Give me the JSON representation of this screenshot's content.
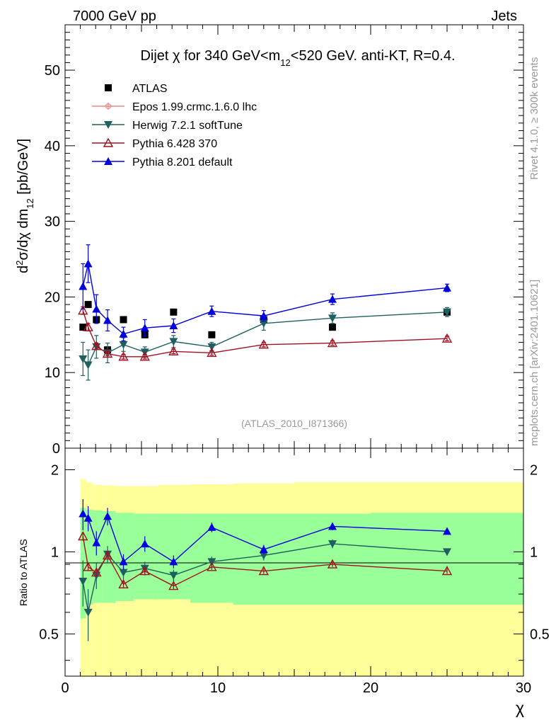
{
  "header": {
    "energy_label": "7000 GeV pp",
    "category_label": "Jets"
  },
  "side": {
    "rivet_label": "Rivet 4.1.0, ≥ 300k events",
    "mcplots_label": "mcplots.cern.ch [arXiv:2401.10621]"
  },
  "colors": {
    "atlas": "#000000",
    "epos": "#ee8888",
    "herwig": "#1e5f5f",
    "pythia6": "#a01020",
    "pythia8": "#0000dd",
    "band_inner": "#99ff99",
    "band_outer": "#ffff99"
  },
  "chart_data": [
    {
      "type": "scatter",
      "title": "Dijet χ for 340 GeV<m12<520 GeV.  anti-KT, R=0.4.",
      "title_parts": {
        "pre": "Dijet ",
        "chi": "χ",
        "mid": " for 340 GeV<m",
        "sub": "12",
        "post": "<520 GeV.  anti-KT, R=0.4."
      },
      "ylabel": "d²σ/dχ dm12 [pb/GeV]",
      "ylabel_parts": {
        "d": "d",
        "two": "2",
        "sig": "σ/dχ dm",
        "sub": "12",
        "unit": " [pb/GeV]"
      },
      "watermark": "(ATLAS_2010_I871366)",
      "xlim": [
        0,
        30
      ],
      "ylim": [
        0,
        56
      ],
      "y_ticks": [
        0,
        10,
        20,
        30,
        40,
        50
      ],
      "x": [
        1.17,
        1.51,
        2.05,
        2.78,
        3.82,
        5.22,
        7.1,
        9.6,
        13.0,
        17.5,
        25.0
      ],
      "series": [
        {
          "name": "ATLAS",
          "marker": "square",
          "values": [
            16.0,
            19.0,
            17.0,
            13.0,
            17.0,
            15.0,
            18.0,
            15.0,
            17.0,
            16.0,
            18.0
          ]
        },
        {
          "name": "Epos 1.99.crmc.1.6.0 lhc",
          "marker": "cross",
          "values": []
        },
        {
          "name": "Herwig 7.2.1 softTune",
          "marker": "triangle-down",
          "values": [
            11.8,
            11.0,
            13.4,
            12.6,
            13.7,
            12.7,
            14.1,
            13.4,
            16.5,
            17.2,
            18.0
          ],
          "errors": [
            2.2,
            2.0,
            1.5,
            1.3,
            0.9,
            0.7,
            0.8,
            0.6,
            0.9,
            0.7,
            0.6
          ]
        },
        {
          "name": "Pythia 6.428 370",
          "marker": "triangle-open",
          "values": [
            18.2,
            16.0,
            13.5,
            12.5,
            12.1,
            12.1,
            12.8,
            12.6,
            13.7,
            13.9,
            14.5
          ],
          "errors": [
            0.5,
            0.5,
            0.4,
            0.3,
            0.3,
            0.3,
            0.3,
            0.3,
            0.3,
            0.3,
            0.3
          ]
        },
        {
          "name": "Pythia 8.201 default",
          "marker": "triangle-up",
          "values": [
            21.4,
            24.4,
            18.4,
            16.9,
            15.1,
            15.9,
            16.2,
            18.1,
            17.5,
            19.7,
            21.2
          ],
          "errors": [
            3.0,
            2.5,
            1.9,
            1.4,
            0.9,
            1.1,
            0.9,
            0.7,
            0.7,
            0.7,
            0.5
          ]
        }
      ]
    },
    {
      "type": "scatter",
      "xlabel": "χ",
      "ylabel": "Ratio to ATLAS",
      "xlim": [
        0,
        30
      ],
      "ylim": [
        0.35,
        2.4
      ],
      "yscale": "log",
      "x_ticks": [
        0,
        10,
        20,
        30
      ],
      "y_ticks": [
        0.5,
        1,
        2
      ],
      "x": [
        1.17,
        1.51,
        2.05,
        2.78,
        3.82,
        5.22,
        7.1,
        9.6,
        13.0,
        17.5,
        25.0
      ],
      "band_edges": [
        1.0,
        1.35,
        1.8,
        2.45,
        3.3,
        4.5,
        6.1,
        8.2,
        11.0,
        15.0,
        20.0,
        30.0
      ],
      "band_outer": {
        "lower": [
          0.34,
          0.34,
          0.34,
          0.34,
          0.34,
          0.34,
          0.34,
          0.34,
          0.34,
          0.34,
          0.34
        ],
        "upper": [
          1.85,
          1.8,
          1.76,
          1.75,
          1.74,
          1.74,
          1.76,
          1.77,
          1.78,
          1.8,
          1.8
        ]
      },
      "band_inner": {
        "lower": [
          0.57,
          0.64,
          0.65,
          0.65,
          0.66,
          0.67,
          0.67,
          0.65,
          0.64,
          0.64,
          0.64
        ],
        "upper": [
          1.45,
          1.43,
          1.42,
          1.41,
          1.39,
          1.38,
          1.38,
          1.38,
          1.38,
          1.38,
          1.39
        ]
      },
      "series": [
        {
          "name": "Herwig 7.2.1 softTune",
          "marker": "triangle-down",
          "values": [
            0.78,
            0.6,
            0.82,
            0.98,
            0.84,
            0.87,
            0.82,
            0.92,
            0.97,
            1.07,
            1.0
          ],
          "errors": [
            0.15,
            0.13,
            0.09,
            0.07,
            0.05,
            0.05,
            0.04,
            0.04,
            0.04,
            0.04,
            0.03
          ]
        },
        {
          "name": "Pythia 6.428 370",
          "marker": "triangle-open",
          "values": [
            1.14,
            0.88,
            0.84,
            0.97,
            0.76,
            0.85,
            0.75,
            0.88,
            0.85,
            0.9,
            0.85
          ],
          "errors": [
            0.04,
            0.03,
            0.03,
            0.03,
            0.02,
            0.02,
            0.02,
            0.02,
            0.02,
            0.02,
            0.02
          ]
        },
        {
          "name": "Pythia 8.201 default",
          "marker": "triangle-up",
          "values": [
            1.38,
            1.33,
            1.08,
            1.35,
            0.92,
            1.07,
            0.92,
            1.23,
            1.02,
            1.24,
            1.19
          ],
          "errors": [
            0.18,
            0.14,
            0.11,
            0.1,
            0.06,
            0.07,
            0.05,
            0.05,
            0.04,
            0.04,
            0.03
          ]
        }
      ]
    }
  ]
}
